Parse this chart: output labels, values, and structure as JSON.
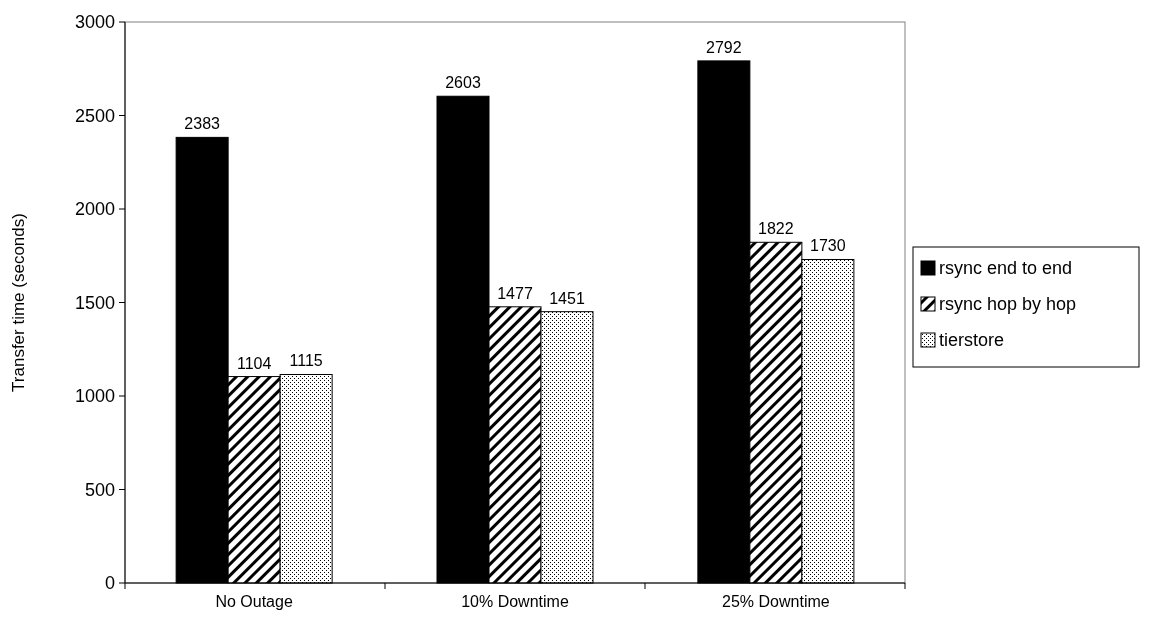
{
  "chart_data": {
    "type": "bar",
    "ylabel": "Transfer time (seconds)",
    "categories": [
      "No Outage",
      "10% Downtime",
      "25% Downtime"
    ],
    "series": [
      {
        "name": "rsync end to end",
        "color": "#000000",
        "values": [
          2383,
          2603,
          2792
        ]
      },
      {
        "name": "rsync hop by hop",
        "color": "#000000",
        "values": [
          1104,
          1477,
          1822
        ]
      },
      {
        "name": "tierstore",
        "color": "#000000",
        "values": [
          1115,
          1451,
          1730
        ]
      }
    ],
    "ylim": [
      0,
      3000
    ],
    "yticks": [
      0,
      500,
      1000,
      1500,
      2000,
      2500,
      3000
    ],
    "data_labels": true,
    "legend": "right",
    "grid": false
  }
}
